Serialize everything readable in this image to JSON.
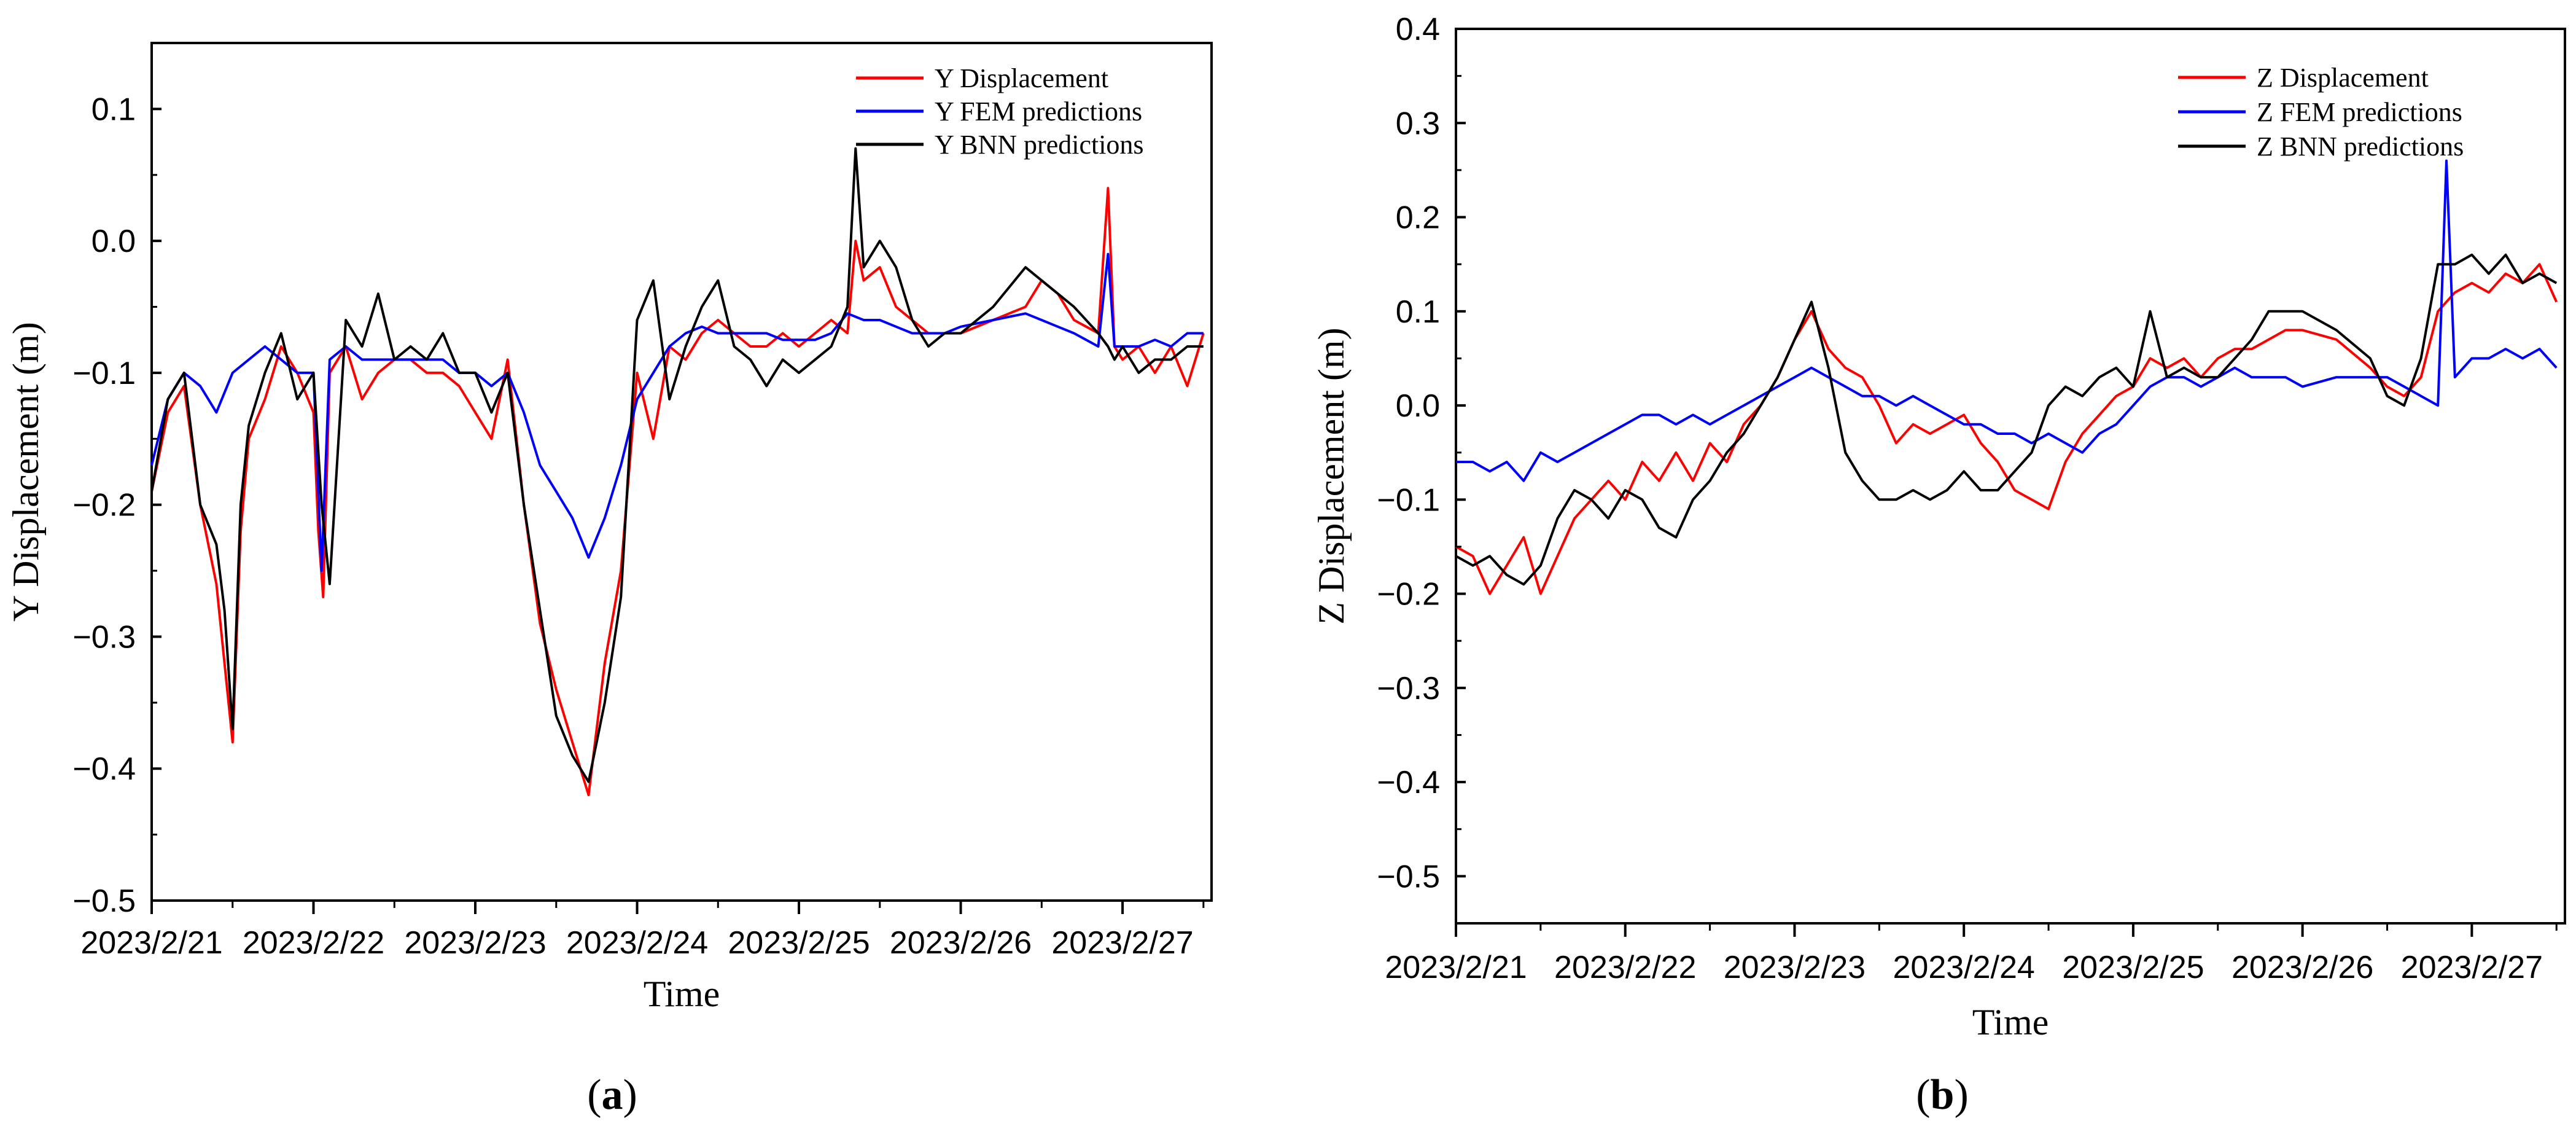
{
  "chart_data": [
    {
      "type": "line",
      "panel": "a",
      "panel_label": "a",
      "title": "",
      "xlabel": "Time",
      "ylabel": "Y Displacement (m)",
      "ylim": [
        -0.5,
        0.15
      ],
      "yticks": [
        -0.5,
        -0.4,
        -0.3,
        -0.2,
        -0.1,
        0.0,
        0.1
      ],
      "ytick_labels": [
        "−0.5",
        "−0.4",
        "−0.3",
        "−0.2",
        "−0.1",
        "0.0",
        "0.1"
      ],
      "xlim": [
        0,
        6.55
      ],
      "xticks": [
        0,
        1,
        2,
        3,
        4,
        5,
        6
      ],
      "x_tick_labels": [
        "2023/2/21",
        "2023/2/22",
        "2023/2/23",
        "2023/2/24",
        "2023/2/25",
        "2023/2/26",
        "2023/2/27"
      ],
      "legend_position": "top-right",
      "series": [
        {
          "name": "Y Displacement",
          "color": "#ff0000",
          "x": [
            0.0,
            0.1,
            0.2,
            0.3,
            0.4,
            0.5,
            0.55,
            0.6,
            0.7,
            0.8,
            0.9,
            1.0,
            1.03,
            1.06,
            1.1,
            1.2,
            1.3,
            1.4,
            1.5,
            1.6,
            1.7,
            1.8,
            1.9,
            2.0,
            2.1,
            2.2,
            2.3,
            2.4,
            2.5,
            2.6,
            2.7,
            2.8,
            2.9,
            3.0,
            3.1,
            3.2,
            3.3,
            3.4,
            3.5,
            3.6,
            3.7,
            3.8,
            3.9,
            4.0,
            4.1,
            4.2,
            4.3,
            4.35,
            4.4,
            4.5,
            4.6,
            4.7,
            4.8,
            4.9,
            5.0,
            5.2,
            5.4,
            5.5,
            5.6,
            5.7,
            5.85,
            5.91,
            5.95,
            6.0,
            6.1,
            6.2,
            6.3,
            6.4,
            6.5
          ],
          "y": [
            -0.19,
            -0.13,
            -0.11,
            -0.2,
            -0.26,
            -0.38,
            -0.22,
            -0.15,
            -0.12,
            -0.08,
            -0.1,
            -0.13,
            -0.22,
            -0.27,
            -0.1,
            -0.08,
            -0.12,
            -0.1,
            -0.09,
            -0.09,
            -0.1,
            -0.1,
            -0.11,
            -0.13,
            -0.15,
            -0.09,
            -0.2,
            -0.29,
            -0.34,
            -0.38,
            -0.42,
            -0.32,
            -0.25,
            -0.1,
            -0.15,
            -0.08,
            -0.09,
            -0.07,
            -0.06,
            -0.07,
            -0.08,
            -0.08,
            -0.07,
            -0.08,
            -0.07,
            -0.06,
            -0.07,
            0.0,
            -0.03,
            -0.02,
            -0.05,
            -0.06,
            -0.07,
            -0.07,
            -0.07,
            -0.06,
            -0.05,
            -0.03,
            -0.04,
            -0.06,
            -0.07,
            0.04,
            -0.08,
            -0.09,
            -0.08,
            -0.1,
            -0.08,
            -0.11,
            -0.07
          ]
        },
        {
          "name": "Y FEM predictions",
          "color": "#0000ff",
          "x": [
            0.0,
            0.1,
            0.2,
            0.3,
            0.4,
            0.5,
            0.6,
            0.7,
            0.8,
            0.9,
            1.0,
            1.05,
            1.1,
            1.2,
            1.3,
            1.4,
            1.5,
            1.6,
            1.7,
            1.8,
            1.9,
            2.0,
            2.1,
            2.2,
            2.3,
            2.4,
            2.5,
            2.6,
            2.7,
            2.8,
            2.9,
            3.0,
            3.1,
            3.2,
            3.3,
            3.4,
            3.5,
            3.6,
            3.7,
            3.8,
            3.9,
            4.0,
            4.1,
            4.2,
            4.3,
            4.4,
            4.5,
            4.6,
            4.7,
            4.8,
            4.9,
            5.0,
            5.2,
            5.4,
            5.5,
            5.6,
            5.7,
            5.85,
            5.91,
            5.95,
            6.0,
            6.1,
            6.2,
            6.3,
            6.4,
            6.5
          ],
          "y": [
            -0.17,
            -0.12,
            -0.1,
            -0.11,
            -0.13,
            -0.1,
            -0.09,
            -0.08,
            -0.09,
            -0.1,
            -0.1,
            -0.25,
            -0.09,
            -0.08,
            -0.09,
            -0.09,
            -0.09,
            -0.09,
            -0.09,
            -0.09,
            -0.1,
            -0.1,
            -0.11,
            -0.1,
            -0.13,
            -0.17,
            -0.19,
            -0.21,
            -0.24,
            -0.21,
            -0.17,
            -0.12,
            -0.1,
            -0.08,
            -0.07,
            -0.065,
            -0.07,
            -0.07,
            -0.07,
            -0.07,
            -0.075,
            -0.075,
            -0.075,
            -0.07,
            -0.055,
            -0.06,
            -0.06,
            -0.065,
            -0.07,
            -0.07,
            -0.07,
            -0.065,
            -0.06,
            -0.055,
            -0.06,
            -0.065,
            -0.07,
            -0.08,
            -0.01,
            -0.08,
            -0.08,
            -0.08,
            -0.075,
            -0.08,
            -0.07,
            -0.07
          ]
        },
        {
          "name": "Y BNN predictions",
          "color": "#000000",
          "x": [
            0.0,
            0.1,
            0.2,
            0.3,
            0.4,
            0.45,
            0.5,
            0.55,
            0.6,
            0.7,
            0.8,
            0.9,
            1.0,
            1.05,
            1.1,
            1.2,
            1.3,
            1.4,
            1.5,
            1.6,
            1.7,
            1.8,
            1.9,
            2.0,
            2.1,
            2.2,
            2.3,
            2.4,
            2.5,
            2.6,
            2.7,
            2.8,
            2.9,
            3.0,
            3.1,
            3.2,
            3.3,
            3.4,
            3.5,
            3.6,
            3.7,
            3.8,
            3.9,
            4.0,
            4.1,
            4.2,
            4.3,
            4.35,
            4.4,
            4.5,
            4.6,
            4.7,
            4.8,
            4.9,
            5.0,
            5.2,
            5.4,
            5.5,
            5.6,
            5.7,
            5.85,
            5.91,
            5.95,
            6.0,
            6.1,
            6.2,
            6.3,
            6.4,
            6.5
          ],
          "y": [
            -0.19,
            -0.12,
            -0.1,
            -0.2,
            -0.23,
            -0.28,
            -0.37,
            -0.2,
            -0.14,
            -0.1,
            -0.07,
            -0.12,
            -0.1,
            -0.2,
            -0.26,
            -0.06,
            -0.08,
            -0.04,
            -0.09,
            -0.08,
            -0.09,
            -0.07,
            -0.1,
            -0.1,
            -0.13,
            -0.1,
            -0.2,
            -0.28,
            -0.36,
            -0.39,
            -0.41,
            -0.35,
            -0.27,
            -0.06,
            -0.03,
            -0.12,
            -0.08,
            -0.05,
            -0.03,
            -0.08,
            -0.09,
            -0.11,
            -0.09,
            -0.1,
            -0.09,
            -0.08,
            -0.05,
            0.07,
            -0.02,
            0.0,
            -0.02,
            -0.06,
            -0.08,
            -0.07,
            -0.07,
            -0.05,
            -0.02,
            -0.03,
            -0.04,
            -0.05,
            -0.07,
            -0.08,
            -0.09,
            -0.08,
            -0.1,
            -0.09,
            -0.09,
            -0.08,
            -0.08
          ]
        }
      ]
    },
    {
      "type": "line",
      "panel": "b",
      "panel_label": "b",
      "title": "",
      "xlabel": "Time",
      "ylabel": "Z Displacement (m)",
      "ylim": [
        -0.55,
        0.4
      ],
      "yticks": [
        -0.5,
        -0.4,
        -0.3,
        -0.2,
        -0.1,
        0.0,
        0.1,
        0.2,
        0.3,
        0.4
      ],
      "ytick_labels": [
        "−0.5",
        "−0.4",
        "−0.3",
        "−0.2",
        "−0.1",
        "0.0",
        "0.1",
        "0.2",
        "0.3",
        "0.4"
      ],
      "xlim": [
        0,
        6.55
      ],
      "xticks": [
        0,
        1,
        2,
        3,
        4,
        5,
        6
      ],
      "x_tick_labels": [
        "2023/2/21",
        "2023/2/22",
        "2023/2/23",
        "2023/2/24",
        "2023/2/25",
        "2023/2/26",
        "2023/2/27"
      ],
      "legend_position": "top-right",
      "series": [
        {
          "name": "Z Displacement",
          "color": "#ff0000",
          "x": [
            0.0,
            0.1,
            0.2,
            0.3,
            0.4,
            0.5,
            0.6,
            0.7,
            0.8,
            0.9,
            1.0,
            1.1,
            1.2,
            1.3,
            1.4,
            1.5,
            1.6,
            1.7,
            1.8,
            1.9,
            2.0,
            2.1,
            2.2,
            2.3,
            2.4,
            2.5,
            2.6,
            2.7,
            2.8,
            2.9,
            3.0,
            3.1,
            3.2,
            3.3,
            3.4,
            3.5,
            3.6,
            3.7,
            3.8,
            3.9,
            4.0,
            4.1,
            4.2,
            4.3,
            4.4,
            4.5,
            4.6,
            4.7,
            4.8,
            4.9,
            5.0,
            5.2,
            5.4,
            5.5,
            5.6,
            5.7,
            5.8,
            5.9,
            6.0,
            6.1,
            6.2,
            6.3,
            6.4,
            6.5
          ],
          "y": [
            -0.15,
            -0.16,
            -0.2,
            -0.17,
            -0.14,
            -0.2,
            -0.16,
            -0.12,
            -0.1,
            -0.08,
            -0.1,
            -0.06,
            -0.08,
            -0.05,
            -0.08,
            -0.04,
            -0.06,
            -0.02,
            0.0,
            0.03,
            0.07,
            0.1,
            0.06,
            0.04,
            0.03,
            0.0,
            -0.04,
            -0.02,
            -0.03,
            -0.02,
            -0.01,
            -0.04,
            -0.06,
            -0.09,
            -0.1,
            -0.11,
            -0.06,
            -0.03,
            -0.01,
            0.01,
            0.02,
            0.05,
            0.04,
            0.05,
            0.03,
            0.05,
            0.06,
            0.06,
            0.07,
            0.08,
            0.08,
            0.07,
            0.04,
            0.02,
            0.01,
            0.03,
            0.1,
            0.12,
            0.13,
            0.12,
            0.14,
            0.13,
            0.15,
            0.11
          ]
        },
        {
          "name": "Z FEM predictions",
          "color": "#0000ff",
          "x": [
            0.0,
            0.1,
            0.2,
            0.3,
            0.4,
            0.5,
            0.6,
            0.7,
            0.8,
            0.9,
            1.0,
            1.1,
            1.2,
            1.3,
            1.4,
            1.5,
            1.6,
            1.7,
            1.8,
            1.9,
            2.0,
            2.1,
            2.2,
            2.3,
            2.4,
            2.5,
            2.6,
            2.7,
            2.8,
            2.9,
            3.0,
            3.1,
            3.2,
            3.3,
            3.4,
            3.5,
            3.6,
            3.7,
            3.8,
            3.9,
            4.0,
            4.1,
            4.2,
            4.3,
            4.4,
            4.5,
            4.6,
            4.7,
            4.8,
            4.9,
            5.0,
            5.2,
            5.4,
            5.5,
            5.6,
            5.7,
            5.8,
            5.85,
            5.9,
            5.95,
            6.0,
            6.1,
            6.2,
            6.3,
            6.4,
            6.5
          ],
          "y": [
            -0.06,
            -0.06,
            -0.07,
            -0.06,
            -0.08,
            -0.05,
            -0.06,
            -0.05,
            -0.04,
            -0.03,
            -0.02,
            -0.01,
            -0.01,
            -0.02,
            -0.01,
            -0.02,
            -0.01,
            0.0,
            0.01,
            0.02,
            0.03,
            0.04,
            0.03,
            0.02,
            0.01,
            0.01,
            0.0,
            0.01,
            0.0,
            -0.01,
            -0.02,
            -0.02,
            -0.03,
            -0.03,
            -0.04,
            -0.03,
            -0.04,
            -0.05,
            -0.03,
            -0.02,
            0.0,
            0.02,
            0.03,
            0.03,
            0.02,
            0.03,
            0.04,
            0.03,
            0.03,
            0.03,
            0.02,
            0.03,
            0.03,
            0.03,
            0.02,
            0.01,
            0.0,
            0.26,
            0.03,
            0.04,
            0.05,
            0.05,
            0.06,
            0.05,
            0.06,
            0.04
          ]
        },
        {
          "name": "Z BNN predictions",
          "color": "#000000",
          "x": [
            0.0,
            0.1,
            0.2,
            0.3,
            0.4,
            0.5,
            0.6,
            0.7,
            0.8,
            0.9,
            1.0,
            1.1,
            1.2,
            1.3,
            1.4,
            1.5,
            1.6,
            1.7,
            1.8,
            1.9,
            2.0,
            2.1,
            2.2,
            2.3,
            2.4,
            2.5,
            2.6,
            2.7,
            2.8,
            2.9,
            3.0,
            3.1,
            3.2,
            3.3,
            3.4,
            3.5,
            3.6,
            3.7,
            3.8,
            3.9,
            4.0,
            4.1,
            4.2,
            4.3,
            4.4,
            4.5,
            4.6,
            4.7,
            4.8,
            4.9,
            5.0,
            5.2,
            5.4,
            5.5,
            5.6,
            5.7,
            5.8,
            5.9,
            6.0,
            6.1,
            6.2,
            6.3,
            6.4,
            6.5
          ],
          "y": [
            -0.16,
            -0.17,
            -0.16,
            -0.18,
            -0.19,
            -0.17,
            -0.12,
            -0.09,
            -0.1,
            -0.12,
            -0.09,
            -0.1,
            -0.13,
            -0.14,
            -0.1,
            -0.08,
            -0.05,
            -0.03,
            0.0,
            0.03,
            0.07,
            0.11,
            0.04,
            -0.05,
            -0.08,
            -0.1,
            -0.1,
            -0.09,
            -0.1,
            -0.09,
            -0.07,
            -0.09,
            -0.09,
            -0.07,
            -0.05,
            0.0,
            0.02,
            0.01,
            0.03,
            0.04,
            0.02,
            0.1,
            0.03,
            0.04,
            0.03,
            0.03,
            0.05,
            0.07,
            0.1,
            0.1,
            0.1,
            0.08,
            0.05,
            0.01,
            0.0,
            0.05,
            0.15,
            0.15,
            0.16,
            0.14,
            0.16,
            0.13,
            0.14,
            0.13
          ]
        }
      ]
    }
  ]
}
